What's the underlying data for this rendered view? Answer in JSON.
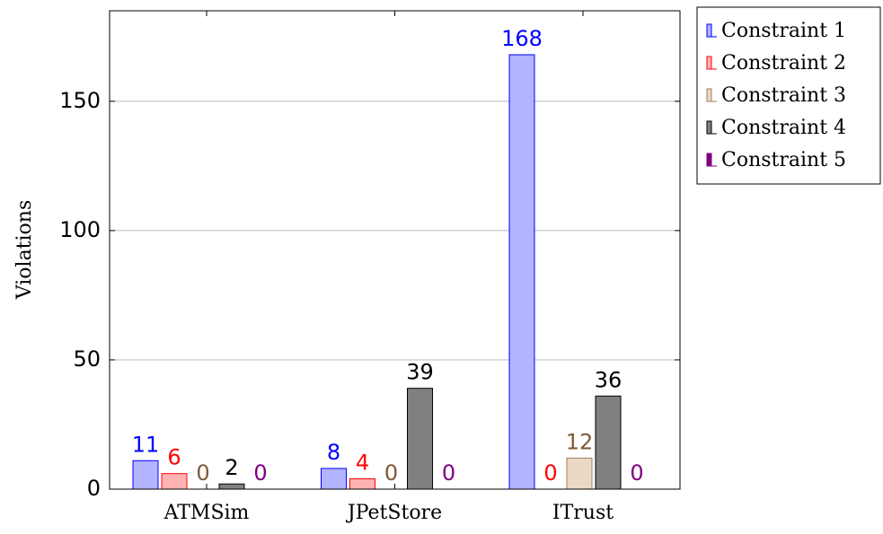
{
  "chart_data": {
    "type": "bar",
    "y_label": "Violations",
    "categories": [
      "ATMSim",
      "JPetStore",
      "ITrust"
    ],
    "series": [
      {
        "name": "Constraint 1",
        "color": "#b3b3ff",
        "stroke": "#0000ff",
        "label_color": "#0000ff",
        "values": [
          11,
          8,
          168
        ]
      },
      {
        "name": "Constraint 2",
        "color": "#ffb3b3",
        "stroke": "#ff0000",
        "label_color": "#ff0000",
        "values": [
          6,
          4,
          0
        ]
      },
      {
        "name": "Constraint 3",
        "color": "#ead9c4",
        "stroke": "#a08060",
        "label_color": "#7f5a33",
        "values": [
          0,
          0,
          12
        ]
      },
      {
        "name": "Constraint 4",
        "color": "#808080",
        "stroke": "#000000",
        "label_color": "#000000",
        "values": [
          2,
          39,
          36
        ]
      },
      {
        "name": "Constraint 5",
        "color": "#800080",
        "stroke": "#800080",
        "label_color": "#800080",
        "values": [
          0,
          0,
          0
        ]
      }
    ],
    "ylim": [
      0,
      185
    ],
    "yticks": [
      0,
      50,
      100,
      150
    ],
    "grid": true,
    "legend": "outside-top-right"
  }
}
